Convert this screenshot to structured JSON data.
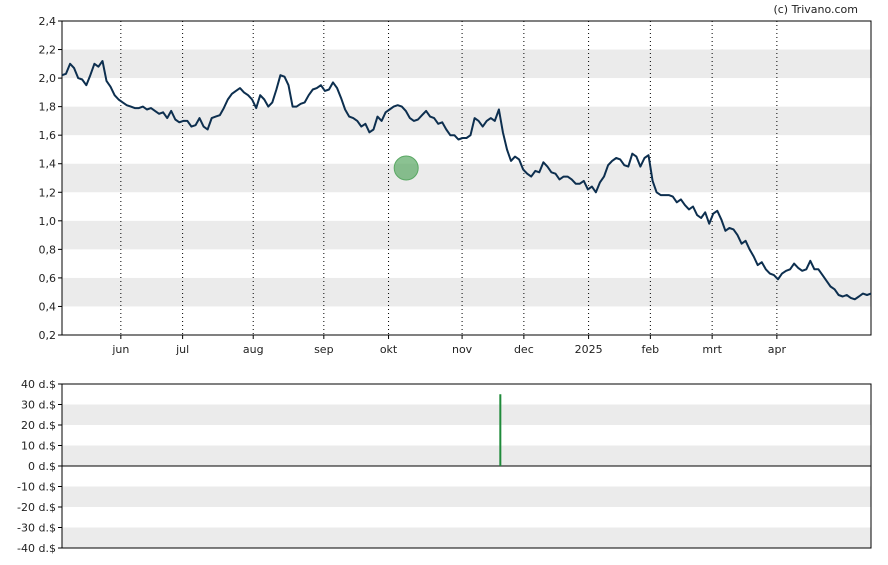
{
  "credit": "(c) Trivano.com",
  "colors": {
    "line": "#0d2f4f",
    "band": "#ebebeb",
    "marker_fill": "#5aa864",
    "volume_bar": "#1f8a3a",
    "axis": "#000000"
  },
  "chart_data": [
    {
      "type": "line",
      "title": "",
      "xlabel": "",
      "ylabel": "",
      "ylim": [
        0.2,
        2.4
      ],
      "y_ticks": [
        "2,4",
        "2,2",
        "2,0",
        "1,8",
        "1,6",
        "1,4",
        "1,2",
        "1,0",
        "0,8",
        "0,6",
        "0,4",
        "0,2"
      ],
      "x_ticks": [
        "jun",
        "jul",
        "aug",
        "sep",
        "okt",
        "nov",
        "dec",
        "2025",
        "feb",
        "mrt",
        "apr"
      ],
      "x_tick_index": [
        20,
        41,
        65,
        89,
        111,
        136,
        157,
        179,
        200,
        221,
        243
      ],
      "x_range": [
        0,
        275
      ],
      "grid": "vertical dotted lines at month ticks, alternating horizontal bands",
      "series": [
        {
          "values": [
            2.02,
            2.03,
            2.1,
            2.07,
            2.0,
            1.99,
            1.95,
            2.02,
            2.1,
            2.08,
            2.12,
            1.98,
            1.94,
            1.88,
            1.85,
            1.83,
            1.81,
            1.8,
            1.79,
            1.79,
            1.8,
            1.78,
            1.79,
            1.77,
            1.75,
            1.76,
            1.72,
            1.77,
            1.71,
            1.69,
            1.7,
            1.7,
            1.66,
            1.67,
            1.72,
            1.66,
            1.64,
            1.72,
            1.73,
            1.74,
            1.79,
            1.85,
            1.89,
            1.91,
            1.93,
            1.9,
            1.88,
            1.85,
            1.79,
            1.88,
            1.85,
            1.8,
            1.83,
            1.92,
            2.02,
            2.01,
            1.95,
            1.8,
            1.8,
            1.82,
            1.83,
            1.88,
            1.92,
            1.93,
            1.95,
            1.91,
            1.92,
            1.97,
            1.93,
            1.86,
            1.78,
            1.73,
            1.72,
            1.7,
            1.66,
            1.68,
            1.62,
            1.64,
            1.73,
            1.7,
            1.76,
            1.78,
            1.8,
            1.81,
            1.8,
            1.77,
            1.72,
            1.7,
            1.71,
            1.74,
            1.77,
            1.73,
            1.72,
            1.68,
            1.69,
            1.64,
            1.6,
            1.6,
            1.57,
            1.58,
            1.58,
            1.6,
            1.72,
            1.7,
            1.66,
            1.7,
            1.72,
            1.7,
            1.78,
            1.62,
            1.5,
            1.42,
            1.45,
            1.43,
            1.36,
            1.33,
            1.31,
            1.35,
            1.34,
            1.41,
            1.38,
            1.34,
            1.33,
            1.29,
            1.31,
            1.31,
            1.29,
            1.26,
            1.26,
            1.28,
            1.22,
            1.24,
            1.2,
            1.27,
            1.31,
            1.39,
            1.42,
            1.44,
            1.43,
            1.39,
            1.38,
            1.47,
            1.45,
            1.38,
            1.44,
            1.46,
            1.28,
            1.2,
            1.18,
            1.18,
            1.18,
            1.17,
            1.13,
            1.15,
            1.11,
            1.08,
            1.1,
            1.04,
            1.02,
            1.06,
            0.98,
            1.05,
            1.07,
            1.01,
            0.93,
            0.95,
            0.94,
            0.9,
            0.84,
            0.86,
            0.8,
            0.75,
            0.69,
            0.71,
            0.66,
            0.63,
            0.62,
            0.59,
            0.63,
            0.65,
            0.66,
            0.7,
            0.67,
            0.65,
            0.66,
            0.72,
            0.66,
            0.66,
            0.62,
            0.58,
            0.54,
            0.52,
            0.48,
            0.47,
            0.48,
            0.46,
            0.45,
            0.47,
            0.49,
            0.48,
            0.49
          ]
        }
      ],
      "marker": {
        "index": 117,
        "value": 1.37
      }
    },
    {
      "type": "bar",
      "title": "",
      "xlabel": "",
      "ylabel": "",
      "ylim": [
        -40,
        40
      ],
      "y_ticks": [
        "40 d.$",
        "30 d.$",
        "20 d.$",
        "10 d.$",
        "0 d.$",
        "-10 d.$",
        "-20 d.$",
        "-30 d.$",
        "-40 d.$"
      ],
      "bars": [
        {
          "index": 149,
          "value": 35
        }
      ]
    }
  ]
}
